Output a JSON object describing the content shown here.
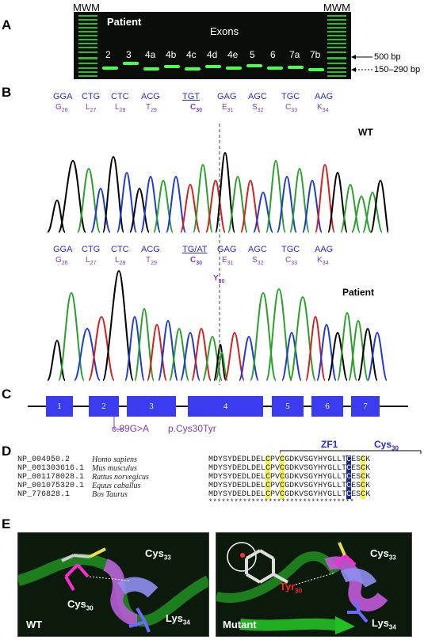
{
  "panel_labels": [
    "A",
    "B",
    "C",
    "D",
    "E"
  ],
  "gel": {
    "mwm_left": "MWM",
    "mwm_right": "MWM",
    "patient": "Patient",
    "exons_title": "Exons",
    "lanes": [
      "2",
      "3",
      "4a",
      "4b",
      "4c",
      "4d",
      "4e",
      "5",
      "6",
      "7a",
      "7b"
    ],
    "bp_500": "500 bp",
    "bp_range": "150–290 bp"
  },
  "chromatogram": {
    "codons": [
      "GGA",
      "CTG",
      "CTC",
      "ACG",
      "TGT",
      "GAG",
      "AGC",
      "TGC",
      "AAG"
    ],
    "codons_patient": [
      "GGA",
      "CTG",
      "CTC",
      "ACG",
      "TG/AT",
      "GAG",
      "AGC",
      "TGC",
      "AAG"
    ],
    "aa": [
      "G",
      "L",
      "L",
      "T",
      "C",
      "E",
      "S",
      "C",
      "K"
    ],
    "aa_nums": [
      "26",
      "27",
      "28",
      "29",
      "30",
      "31",
      "32",
      "33",
      "34"
    ],
    "y30": "Y",
    "y30_num": "30",
    "wt_label": "WT",
    "patient_label": "Patient"
  },
  "gene": {
    "exons": [
      "1",
      "2",
      "3",
      "4",
      "5",
      "6",
      "7"
    ],
    "mutation_c": "c.89G>A",
    "mutation_p": "p.Cys30Tyr"
  },
  "alignment": {
    "zf_label": "ZF1",
    "cys_label": "Cys",
    "cys_num": "30",
    "rows": [
      {
        "acc": "NP_004950.2",
        "species": "Homo sapiens"
      },
      {
        "acc": "NP_001303616.1",
        "species": "Mus musculus"
      },
      {
        "acc": "NP_001178028.1",
        "species": "Rattus norvegicus"
      },
      {
        "acc": "NP_001075320.1",
        "species": "Equus caballus"
      },
      {
        "acc": "NP_776828.1",
        "species": "Bos Taurus"
      }
    ],
    "seq_parts": [
      "MDYSYDEDLDEL",
      "C",
      "PV",
      "C",
      "GDKVSGYHYGLLT",
      "C",
      "ES",
      "C",
      "K"
    ],
    "stars": "**********************************"
  },
  "structure": {
    "wt": {
      "label": "WT",
      "cys33": "Cys",
      "cys33_num": "33",
      "cys30": "Cys",
      "cys30_num": "30",
      "lys34": "Lys",
      "lys34_num": "34"
    },
    "mutant": {
      "label": "Mutant",
      "cys33": "Cys",
      "cys33_num": "33",
      "tyr30": "Tyr",
      "tyr30_num": "30",
      "lys34": "Lys",
      "lys34_num": "34"
    }
  }
}
